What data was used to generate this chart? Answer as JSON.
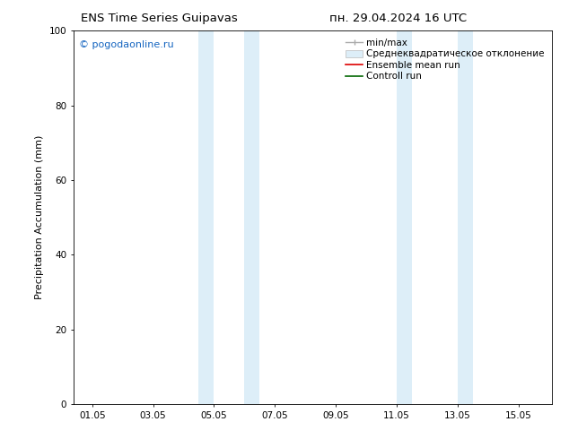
{
  "title_left": "ENS Time Series Guipavas",
  "title_right": "пн. 29.04.2024 16 UTC",
  "ylabel": "Precipitation Accumulation (mm)",
  "watermark": "© pogodaonline.ru",
  "watermark_color": "#1565C0",
  "ylim": [
    0,
    100
  ],
  "yticks": [
    0,
    20,
    40,
    60,
    80,
    100
  ],
  "bg_color": "#ffffff",
  "plot_bg_color": "#ffffff",
  "shade_color": "#ddeef8",
  "shade_regions": [
    [
      4.0,
      4.5
    ],
    [
      5.5,
      6.0
    ],
    [
      10.5,
      11.0
    ],
    [
      12.5,
      13.0
    ]
  ],
  "xtick_labels": [
    "01.05",
    "03.05",
    "05.05",
    "07.05",
    "09.05",
    "11.05",
    "13.05",
    "15.05"
  ],
  "xtick_positions": [
    0.5,
    2.5,
    4.5,
    6.5,
    8.5,
    10.5,
    12.5,
    14.5
  ],
  "xlim": [
    -0.1,
    15.6
  ],
  "legend_entries": [
    {
      "label": "min/max"
    },
    {
      "label": "Среднеквадратическое отклонение"
    },
    {
      "label": "Ensemble mean run"
    },
    {
      "label": "Controll run"
    }
  ],
  "font_size_title": 9.5,
  "font_size_labels": 8,
  "font_size_ticks": 7.5,
  "font_size_legend": 7.5,
  "font_size_watermark": 8
}
